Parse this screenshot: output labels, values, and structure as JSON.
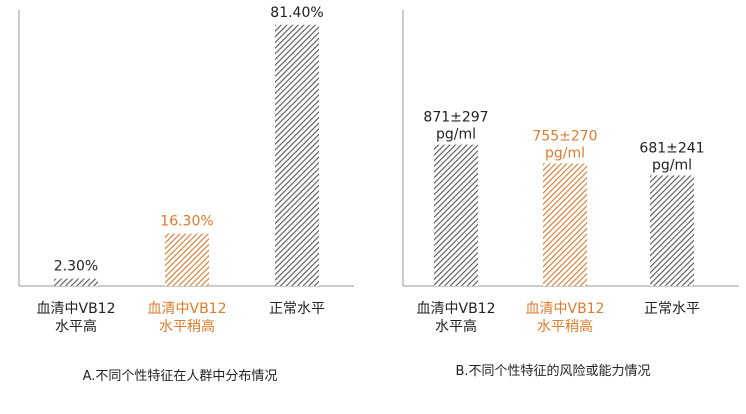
{
  "colors": {
    "gray": "#555555",
    "orange": "#e07b2a",
    "axis": "#999999",
    "text": "#222222"
  },
  "chart_data": [
    {
      "type": "bar",
      "caption": "A.不同个性特征在人群中分布情况",
      "categories": [
        {
          "line1": "血清中VB12",
          "line2": "水平高",
          "color": "gray"
        },
        {
          "line1": "血清中VB12",
          "line2": "水平稍高",
          "color": "orange"
        },
        {
          "line1": "正常水平",
          "line2": "",
          "color": "gray"
        }
      ],
      "values": [
        2.3,
        16.3,
        81.4
      ],
      "value_labels": [
        "2.30%",
        "16.30%",
        "81.40%"
      ],
      "ylim": [
        0,
        86
      ]
    },
    {
      "type": "bar",
      "caption": "B.不同个性特征的风险或能力情况",
      "categories": [
        {
          "line1": "血清中VB12",
          "line2": "水平高",
          "color": "gray"
        },
        {
          "line1": "血清中VB12",
          "line2": "水平稍高",
          "color": "orange"
        },
        {
          "line1": "正常水平",
          "line2": "",
          "color": "gray"
        }
      ],
      "values": [
        871,
        755,
        681
      ],
      "value_labels": [
        {
          "line1": "871±297",
          "line2": "pg/ml"
        },
        {
          "line1": "755±270",
          "line2": "pg/ml"
        },
        {
          "line1": "681±241",
          "line2": "pg/ml"
        }
      ],
      "ylim": [
        0,
        1700
      ]
    }
  ]
}
